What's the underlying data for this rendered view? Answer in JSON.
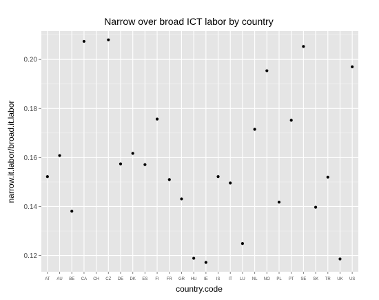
{
  "chart_data": {
    "type": "scatter",
    "title": "Narrow over broad ICT labor by country",
    "xlabel": "country.code",
    "ylabel": "narrow.it.labor/broad.it.labor",
    "categories": [
      "AT",
      "AU",
      "BE",
      "CA",
      "CH",
      "CZ",
      "DE",
      "DK",
      "ES",
      "FI",
      "FR",
      "GR",
      "HU",
      "IE",
      "IS",
      "IT",
      "LU",
      "NL",
      "NO",
      "PL",
      "PT",
      "SE",
      "SK",
      "TR",
      "UK",
      "US"
    ],
    "values": [
      0.1522,
      0.1608,
      0.1381,
      0.2074,
      null,
      0.208,
      0.1574,
      0.1617,
      0.1571,
      0.1757,
      0.151,
      0.1431,
      0.1189,
      0.1172,
      0.1522,
      0.1496,
      0.1249,
      0.1715,
      0.1954,
      0.1418,
      0.1752,
      0.2053,
      0.1397,
      0.152,
      0.1186,
      0.197
    ],
    "ylim": [
      0.1134,
      0.2116
    ],
    "yticks": [
      0.12,
      0.14,
      0.16,
      0.18,
      0.2
    ],
    "ytick_labels": [
      "0.12",
      "0.14",
      "0.16",
      "0.18",
      "0.20"
    ],
    "grid": true,
    "colors": {
      "panel_background": "#e5e5e5",
      "grid_major": "#ffffff",
      "grid_minor": "#f2f2f2",
      "point": "#000000"
    }
  }
}
